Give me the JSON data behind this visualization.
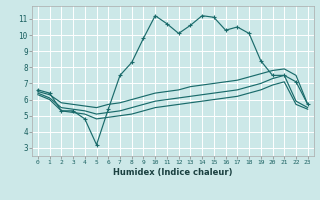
{
  "xlabel": "Humidex (Indice chaleur)",
  "bg_color": "#cce8e8",
  "grid_color": "#ffffff",
  "line_color": "#1a6b6b",
  "xlim": [
    -0.5,
    23.5
  ],
  "ylim": [
    2.5,
    11.8
  ],
  "xticks": [
    0,
    1,
    2,
    3,
    4,
    5,
    6,
    7,
    8,
    9,
    10,
    11,
    12,
    13,
    14,
    15,
    16,
    17,
    18,
    19,
    20,
    21,
    22,
    23
  ],
  "yticks": [
    3,
    4,
    5,
    6,
    7,
    8,
    9,
    10,
    11
  ],
  "curve1_x": [
    0,
    1,
    2,
    3,
    4,
    5,
    6,
    7,
    8,
    9,
    10,
    11,
    12,
    13,
    14,
    15,
    16,
    17,
    18,
    19,
    20,
    21,
    22,
    23
  ],
  "curve1_y": [
    6.6,
    6.4,
    5.3,
    5.3,
    4.8,
    3.2,
    5.4,
    7.5,
    8.3,
    9.8,
    11.2,
    10.7,
    10.1,
    10.6,
    11.2,
    11.1,
    10.3,
    10.5,
    10.1,
    8.4,
    7.5,
    7.5,
    7.1,
    5.7
  ],
  "curve2_x": [
    0,
    1,
    2,
    3,
    4,
    5,
    6,
    7,
    8,
    9,
    10,
    11,
    12,
    13,
    14,
    15,
    16,
    17,
    18,
    19,
    20,
    21,
    22,
    23
  ],
  "curve2_y": [
    6.5,
    6.3,
    5.8,
    5.7,
    5.6,
    5.5,
    5.7,
    5.8,
    6.0,
    6.2,
    6.4,
    6.5,
    6.6,
    6.8,
    6.9,
    7.0,
    7.1,
    7.2,
    7.4,
    7.6,
    7.8,
    7.9,
    7.5,
    5.7
  ],
  "curve3_x": [
    0,
    1,
    2,
    3,
    4,
    5,
    6,
    7,
    8,
    9,
    10,
    11,
    12,
    13,
    14,
    15,
    16,
    17,
    18,
    19,
    20,
    21,
    22,
    23
  ],
  "curve3_y": [
    6.4,
    6.1,
    5.5,
    5.4,
    5.3,
    5.1,
    5.2,
    5.3,
    5.5,
    5.7,
    5.9,
    6.0,
    6.1,
    6.2,
    6.3,
    6.4,
    6.5,
    6.6,
    6.8,
    7.0,
    7.3,
    7.5,
    5.9,
    5.5
  ],
  "curve4_x": [
    0,
    1,
    2,
    3,
    4,
    5,
    6,
    7,
    8,
    9,
    10,
    11,
    12,
    13,
    14,
    15,
    16,
    17,
    18,
    19,
    20,
    21,
    22,
    23
  ],
  "curve4_y": [
    6.3,
    6.0,
    5.3,
    5.2,
    5.1,
    4.8,
    4.9,
    5.0,
    5.1,
    5.3,
    5.5,
    5.6,
    5.7,
    5.8,
    5.9,
    6.0,
    6.1,
    6.2,
    6.4,
    6.6,
    6.9,
    7.1,
    5.7,
    5.4
  ]
}
